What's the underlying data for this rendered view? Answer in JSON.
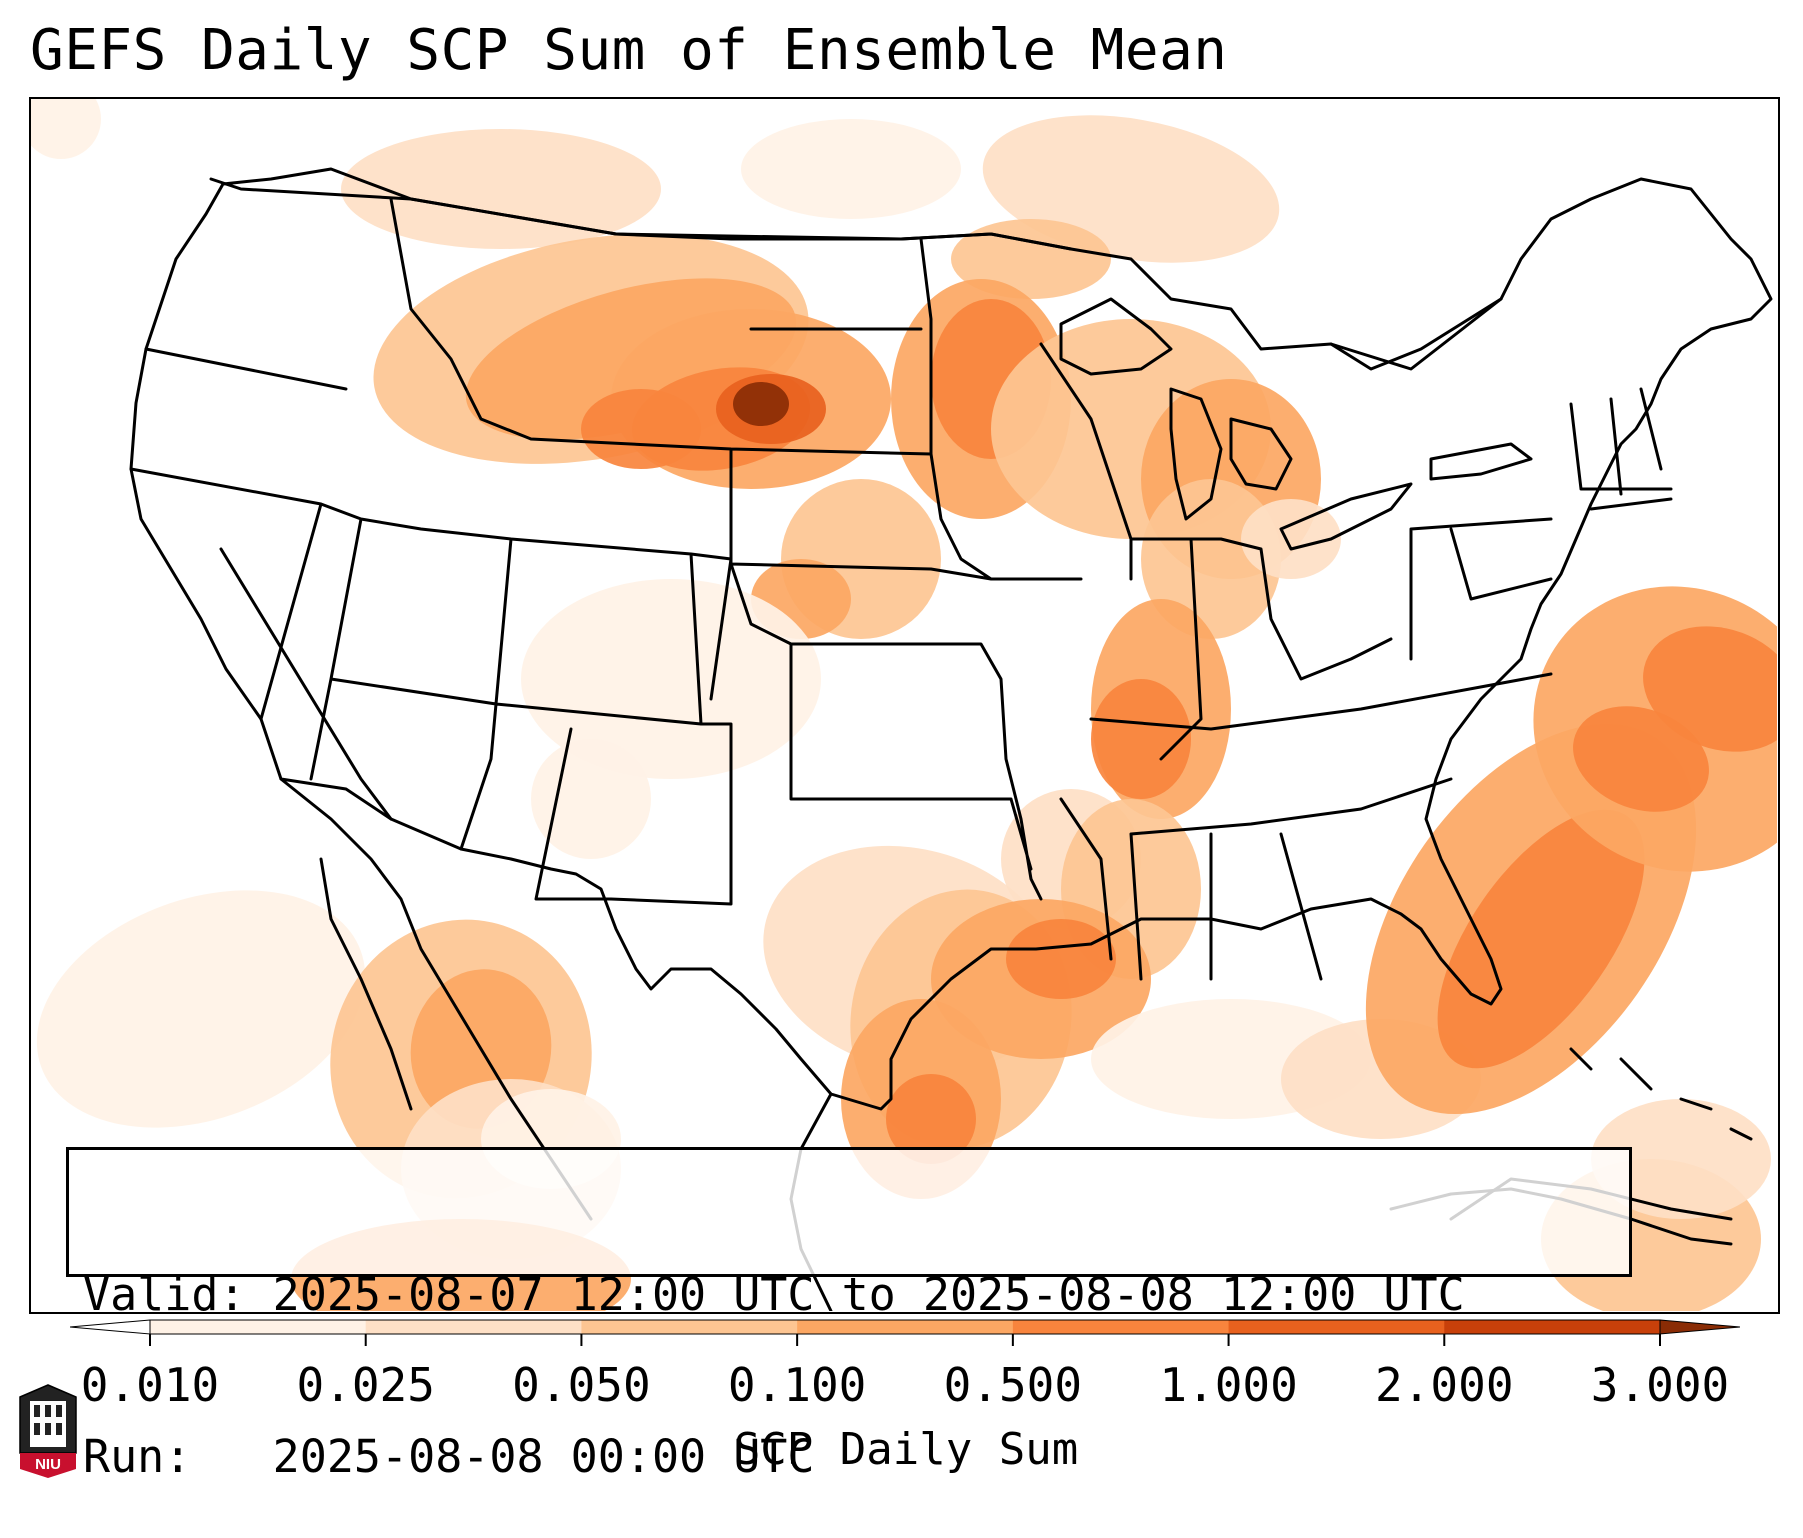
{
  "title": "GEFS Daily SCP Sum of Ensemble Mean",
  "info": {
    "valid_line": "Valid: 2025-08-07 12:00 UTC to 2025-08-08 12:00 UTC",
    "run_line": "Run:   2025-08-08 00:00 UTC"
  },
  "colorbar": {
    "label": "SCP Daily Sum",
    "ticks": [
      "0.010",
      "0.025",
      "0.050",
      "0.100",
      "0.500",
      "1.000",
      "2.000",
      "3.000"
    ],
    "colors": [
      "#fff2e6",
      "#fee0c6",
      "#fdc592",
      "#fca763",
      "#f8843d",
      "#e8611e",
      "#c8400a"
    ],
    "under_color": "#ffffff",
    "over_color": "#8a2c05"
  },
  "logo": {
    "text": "NIU",
    "icon": "university-tower-icon"
  },
  "map": {
    "projection": "lambert-conformal",
    "region": "Contiguous United States",
    "field": "SCP daily sum, ensemble mean",
    "colors": {
      "lightest": "#fff2e6",
      "light": "#fee0c6",
      "medium_light": "#fdc592",
      "medium": "#fca763",
      "medium_dark": "#f8843d",
      "dark": "#e8611e",
      "darker": "#c8400a",
      "darkest": "#8a2c05"
    }
  }
}
